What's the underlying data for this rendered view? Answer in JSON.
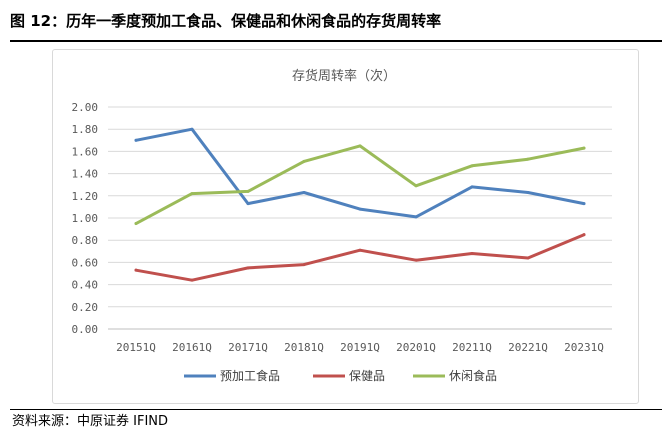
{
  "figure": {
    "title": "图 12：历年一季度预加工食品、保健品和休闲食品的存货周转率",
    "source": "资料来源：中原证券  IFIND"
  },
  "chart_data": {
    "type": "line",
    "title": "存货周转率（次）",
    "xlabel": "",
    "ylabel": "",
    "categories": [
      "20151Q",
      "20161Q",
      "20171Q",
      "20181Q",
      "20191Q",
      "20201Q",
      "20211Q",
      "20221Q",
      "20231Q"
    ],
    "y_ticks": [
      "0.00",
      "0.20",
      "0.40",
      "0.60",
      "0.80",
      "1.00",
      "1.20",
      "1.40",
      "1.60",
      "1.80",
      "2.00"
    ],
    "ylim": [
      0,
      2
    ],
    "grid": true,
    "legend_position": "bottom",
    "series": [
      {
        "name": "预加工食品",
        "color": "#4F81BD",
        "values": [
          1.7,
          1.8,
          1.13,
          1.23,
          1.08,
          1.01,
          1.28,
          1.23,
          1.13
        ]
      },
      {
        "name": "保健品",
        "color": "#C0504D",
        "values": [
          0.53,
          0.44,
          0.55,
          0.58,
          0.71,
          0.62,
          0.68,
          0.64,
          0.85
        ]
      },
      {
        "name": "休闲食品",
        "color": "#9BBB59",
        "values": [
          0.95,
          1.22,
          1.24,
          1.51,
          1.65,
          1.29,
          1.47,
          1.53,
          1.63
        ]
      }
    ]
  }
}
